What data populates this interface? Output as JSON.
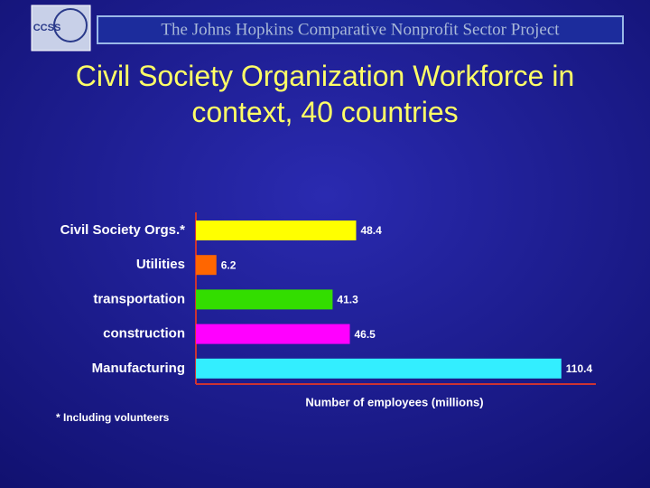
{
  "header": {
    "logo": "CCSS",
    "banner": "The Johns Hopkins Comparative Nonprofit Sector Project"
  },
  "chart_data": {
    "type": "bar",
    "orientation": "horizontal",
    "title": "Civil Society Organization Workforce in context, 40 countries",
    "categories": [
      "Civil Society Orgs.*",
      "Utilities",
      "transportation",
      "construction",
      "Manufacturing"
    ],
    "values": [
      48.4,
      6.2,
      41.3,
      46.5,
      110.4
    ],
    "colors": [
      "#ffff00",
      "#ff6600",
      "#33dd00",
      "#ff00ff",
      "#33eeff"
    ],
    "xlim": [
      0,
      120
    ],
    "xlabel": "Number of employees (millions)",
    "note": "* Including volunteers"
  }
}
